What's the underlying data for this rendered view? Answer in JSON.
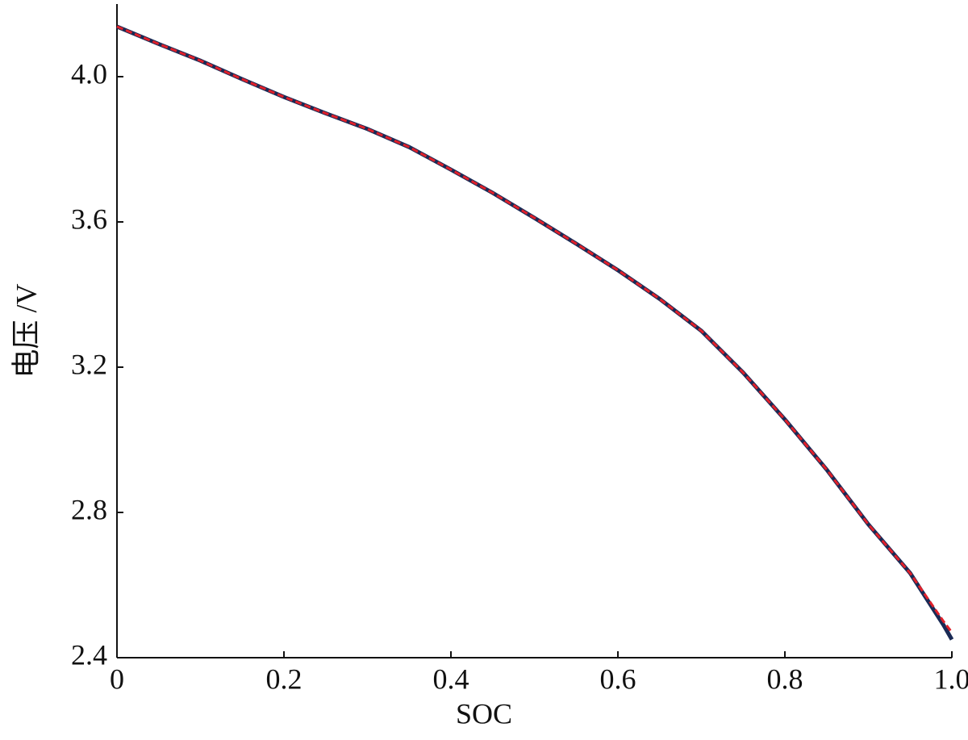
{
  "chart_data": {
    "type": "line",
    "x_label": "SOC",
    "y_label": "电压 /V",
    "x": [
      0,
      0.05,
      0.1,
      0.15,
      0.2,
      0.25,
      0.3,
      0.35,
      0.4,
      0.45,
      0.5,
      0.55,
      0.6,
      0.65,
      0.7,
      0.75,
      0.8,
      0.85,
      0.9,
      0.95,
      0.99,
      1.0
    ],
    "series": [
      {
        "color": "#1a2a55",
        "dash": false,
        "values": [
          4.138,
          4.09,
          4.044,
          3.993,
          3.944,
          3.899,
          3.856,
          3.806,
          3.744,
          3.68,
          3.611,
          3.54,
          3.467,
          3.388,
          3.3,
          3.185,
          3.056,
          2.918,
          2.767,
          2.633,
          2.49,
          2.45
        ]
      },
      {
        "color": "#e0202a",
        "dash": true,
        "values": [
          4.138,
          4.09,
          4.044,
          3.993,
          3.944,
          3.899,
          3.856,
          3.806,
          3.744,
          3.68,
          3.611,
          3.54,
          3.467,
          3.388,
          3.3,
          3.185,
          3.056,
          2.918,
          2.767,
          2.633,
          2.5,
          2.47
        ]
      }
    ],
    "xlim": [
      0,
      1
    ],
    "ylim": [
      2.4,
      4.2
    ],
    "xticks": [
      0,
      0.2,
      0.4,
      0.6,
      0.8,
      {
        "value": 1,
        "label": "1.0"
      }
    ],
    "yticks": [
      2.4,
      2.8,
      3.2,
      3.6,
      {
        "value": 4,
        "label": "4.0"
      }
    ],
    "grid": false
  }
}
